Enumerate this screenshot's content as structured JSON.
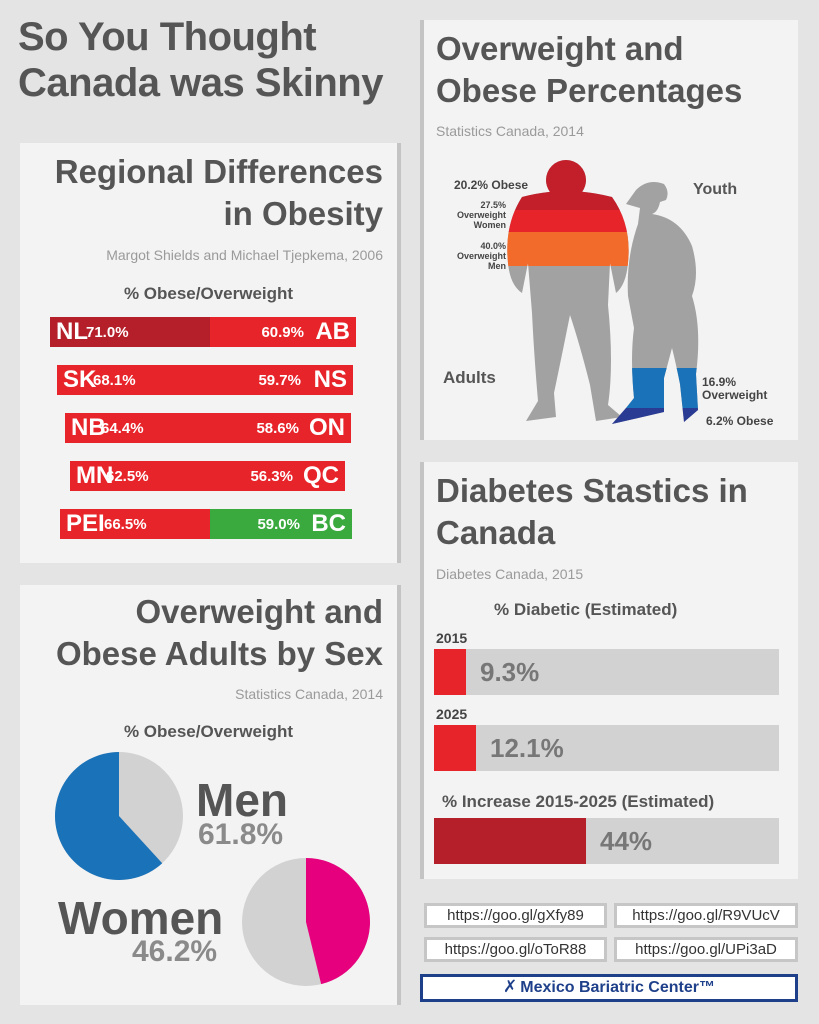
{
  "main_title_line1": "So You Thought",
  "main_title_line2": "Canada was Skinny",
  "colors": {
    "red": "#e8242b",
    "dark_red": "#b41f2a",
    "green": "#3aaa3f",
    "blue": "#1a72b8",
    "magenta": "#e6007e",
    "orange": "#f26b2b",
    "grey": "#a2a2a2",
    "navy": "#1e3f8a"
  },
  "regional": {
    "title_line1": "Regional Differences",
    "title_line2": "in Obesity",
    "source": "Margot Shields and Michael Tjepkema, 2006",
    "chart_title": "% Obese/Overweight"
  },
  "by_sex": {
    "title_line1": "Overweight and",
    "title_line2": "Obese Adults by Sex",
    "source": "Statistics Canada, 2014",
    "chart_title": "% Obese/Overweight"
  },
  "percentages": {
    "title_line1": "Overweight and",
    "title_line2": "Obese Percentages",
    "source": "Statistics Canada, 2014",
    "adult_obese": "20.2% Obese",
    "women_overweight_value": "27.5%",
    "women_overweight_label1": "Overweight",
    "women_overweight_label2": "Women",
    "men_overweight_value": "40.0%",
    "men_overweight_label1": "Overweight",
    "men_overweight_label2": "Men",
    "adults_label": "Adults",
    "youth_label": "Youth",
    "youth_overweight_value": "16.9%",
    "youth_overweight_label": "Overweight",
    "youth_obese": "6.2% Obese"
  },
  "diabetes": {
    "title_line1": "Diabetes Stastics in",
    "title_line2": "Canada",
    "source": "Diabetes Canada, 2015",
    "chart_title": "% Diabetic (Estimated)",
    "increase_title": "% Increase 2015-2025 (Estimated)"
  },
  "links": [
    "https://goo.gl/gXfy89",
    "https://goo.gl/R9VUcV",
    "https://goo.gl/oToR88",
    "https://goo.gl/UPi3aD"
  ],
  "brand": "Mexico Bariatric Center™",
  "chart_data": [
    {
      "type": "bar",
      "title": "% Obese/Overweight",
      "rows": [
        {
          "left_code": "NL",
          "left_value": 71.0,
          "left_label": "71.0%",
          "right_code": "AB",
          "right_value": 60.9,
          "right_label": "60.9%",
          "left_color": "#b41f2a",
          "right_color": "#e8242b"
        },
        {
          "left_code": "SK",
          "left_value": 68.1,
          "left_label": "68.1%",
          "right_code": "NS",
          "right_value": 59.7,
          "right_label": "59.7%",
          "left_color": "#e8242b",
          "right_color": "#e8242b"
        },
        {
          "left_code": "NB",
          "left_value": 64.4,
          "left_label": "64.4%",
          "right_code": "ON",
          "right_value": 58.6,
          "right_label": "58.6%",
          "left_color": "#e8242b",
          "right_color": "#e8242b"
        },
        {
          "left_code": "MN",
          "left_value": 62.5,
          "left_label": "62.5%",
          "right_code": "QC",
          "right_value": 56.3,
          "right_label": "56.3%",
          "left_color": "#e8242b",
          "right_color": "#e8242b"
        },
        {
          "left_code": "PEI",
          "left_value": 66.5,
          "left_label": "66.5%",
          "right_code": "BC",
          "right_value": 59.0,
          "right_label": "59.0%",
          "left_color": "#e8242b",
          "right_color": "#3aaa3f"
        }
      ]
    },
    {
      "type": "pie",
      "title": "% Obese/Overweight",
      "slices": [
        {
          "name": "Men",
          "value": 61.8,
          "label": "61.8%",
          "color": "#1a72b8"
        },
        {
          "name": "Women",
          "value": 46.2,
          "label": "46.2%",
          "color": "#e6007e"
        }
      ]
    },
    {
      "type": "bar",
      "title": "% Diabetic (Estimated)",
      "categories": [
        "2015",
        "2025"
      ],
      "values": [
        9.3,
        12.1
      ],
      "labels": [
        "9.3%",
        "12.1%"
      ],
      "increase": {
        "title": "% Increase 2015-2025 (Estimated)",
        "value": 44,
        "label": "44%"
      }
    }
  ]
}
